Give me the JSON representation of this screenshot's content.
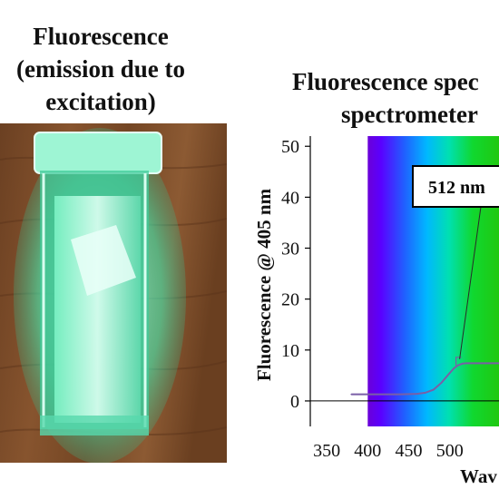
{
  "left_title": {
    "line1": "Fluorescence",
    "line2": "(emission due to",
    "line3": "excitation)"
  },
  "right_title": {
    "line1": "Fluorescence spec",
    "line2": "spectrometer"
  },
  "chart_data": {
    "type": "line",
    "title": "Fluorescence spec spectrometer",
    "xlabel": "Wav",
    "ylabel": "Fluorescence @ 405 nm",
    "xlim": [
      330,
      560
    ],
    "ylim": [
      -5,
      52
    ],
    "xticks": [
      350,
      400,
      450,
      500
    ],
    "xtick_labels": [
      "350",
      "400",
      "450",
      "500"
    ],
    "yticks": [
      0,
      10,
      20,
      30,
      40,
      50
    ],
    "ytick_labels": [
      "0",
      "10",
      "20",
      "30",
      "40",
      "50"
    ],
    "series": [
      {
        "color": "#7a5fa6",
        "x": [
          380,
          400,
          420,
          440,
          460,
          470,
          480,
          490,
          500,
          505,
          510,
          515,
          520,
          540,
          560
        ],
        "y": [
          1.3,
          1.3,
          1.3,
          1.3,
          1.4,
          1.6,
          2.2,
          3.6,
          5.5,
          6.4,
          7.0,
          7.3,
          7.4,
          7.4,
          7.4
        ]
      }
    ],
    "zero_line": 0,
    "spectrum_background": {
      "x_start": 400,
      "x_end": 560
    },
    "annotation": {
      "text": "512 nm",
      "x": 512,
      "y": 7.5
    },
    "grid": false,
    "colors": {
      "axis": "#000000",
      "text": "#111111",
      "curve": "#7a5fa6"
    }
  }
}
